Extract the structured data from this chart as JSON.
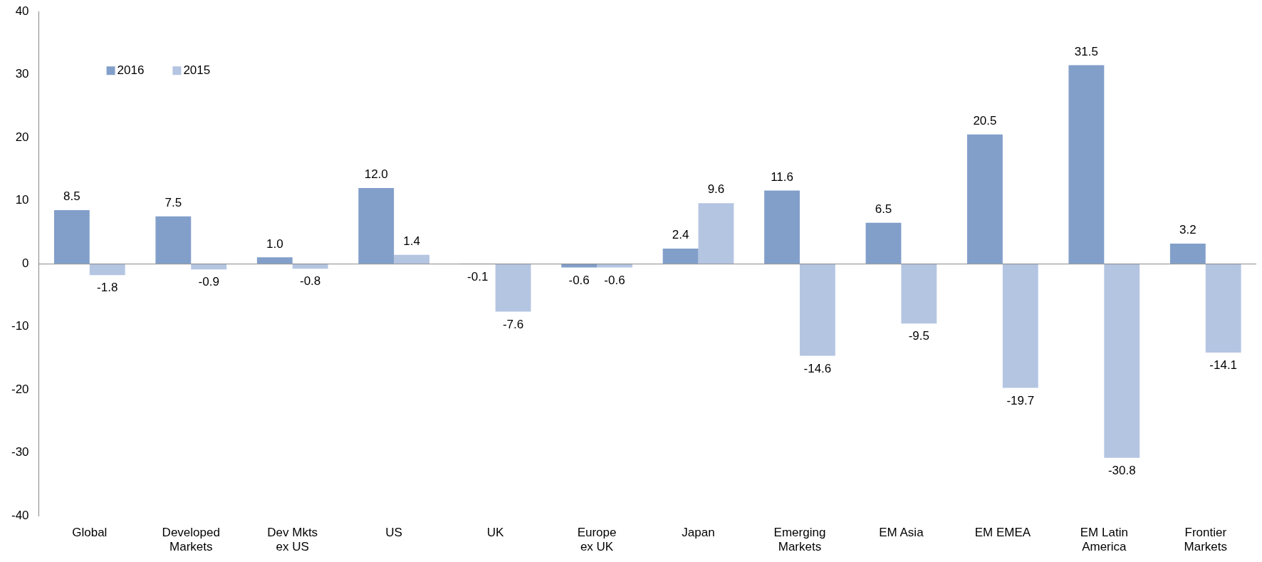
{
  "chart_data": {
    "type": "bar",
    "categories": [
      "Global",
      "Developed\nMarkets",
      "Dev Mkts\nex US",
      "US",
      "UK",
      "Europe\nex UK",
      "Japan",
      "Emerging\nMarkets",
      "EM Asia",
      "EM EMEA",
      "EM Latin\nAmerica",
      "Frontier\nMarkets"
    ],
    "series": [
      {
        "name": "2016",
        "color": "#829fca",
        "values": [
          8.5,
          7.5,
          1.0,
          12.0,
          -0.1,
          -0.6,
          2.4,
          11.6,
          6.5,
          20.5,
          31.5,
          3.2
        ],
        "value_labels": [
          "8.5",
          "7.5",
          "1.0",
          "12.0",
          "-0.1",
          "-0.6",
          "2.4",
          "11.6",
          "6.5",
          "20.5",
          "31.5",
          "3.2"
        ]
      },
      {
        "name": "2015",
        "color": "#b4c5e2",
        "values": [
          -1.8,
          -0.9,
          -0.8,
          1.4,
          -7.6,
          -0.6,
          9.6,
          -14.6,
          -9.5,
          -19.7,
          -30.8,
          -14.1
        ],
        "value_labels": [
          "-1.8",
          "-0.9",
          "-0.8",
          "1.4",
          "-7.6",
          "-0.6",
          "9.6",
          "-14.6",
          "-9.5",
          "-19.7",
          "-30.8",
          "-14.1"
        ]
      }
    ],
    "ylim": [
      -40,
      40
    ],
    "yticks": [
      -40,
      -30,
      -20,
      -10,
      0,
      10,
      20,
      30,
      40
    ],
    "legend": "top left"
  }
}
